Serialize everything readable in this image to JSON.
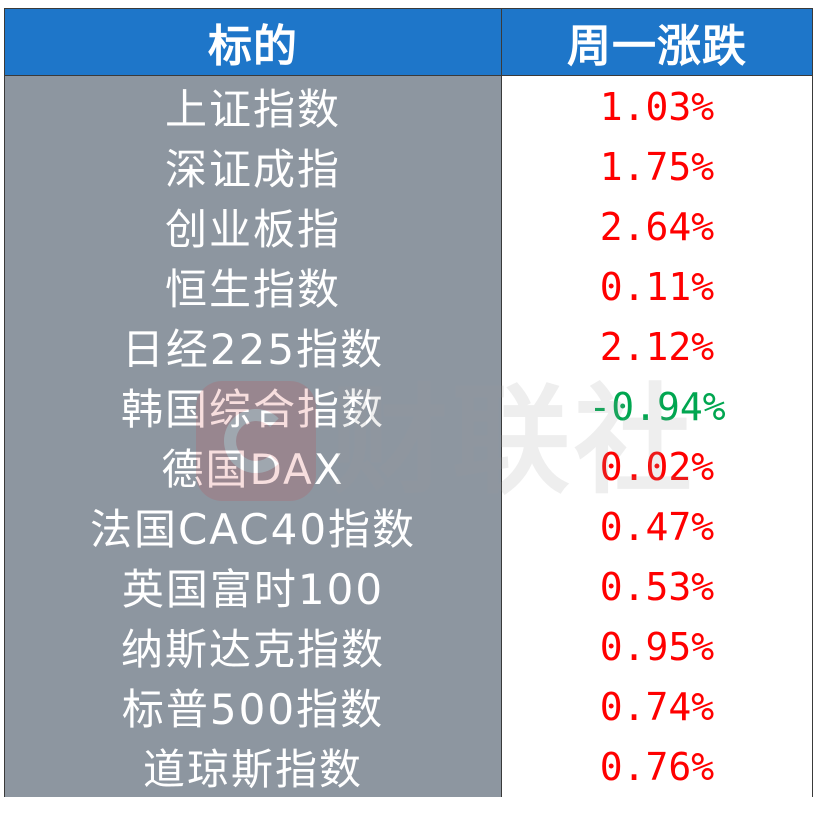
{
  "chart_data": {
    "type": "table",
    "columns": [
      "标的",
      "周一涨跌"
    ],
    "rows": [
      {
        "label": "上证指数",
        "value": "1.03%"
      },
      {
        "label": "深证成指",
        "value": "1.75%"
      },
      {
        "label": "创业板指",
        "value": "2.64%"
      },
      {
        "label": "恒生指数",
        "value": "0.11%"
      },
      {
        "label": "日经225指数",
        "value": "2.12%"
      },
      {
        "label": "韩国综合指数",
        "value": "-0.94%"
      },
      {
        "label": "德国DAX",
        "value": "0.02%"
      },
      {
        "label": "法国CAC40指数",
        "value": "0.47%"
      },
      {
        "label": "英国富时100",
        "value": "0.53%"
      },
      {
        "label": "纳斯达克指数",
        "value": "0.95%"
      },
      {
        "label": "标普500指数",
        "value": "0.74%"
      },
      {
        "label": "道琼斯指数",
        "value": "0.76%"
      }
    ]
  },
  "watermark": "财联社",
  "colors": {
    "header_bg": "#1E76C9",
    "header_text": "#FFFFFF",
    "label_bg": "#8D96A0",
    "label_text": "#FFFFFF",
    "value_bg": "#FFFFFF",
    "positive": "#FF0000",
    "negative": "#00A650"
  }
}
